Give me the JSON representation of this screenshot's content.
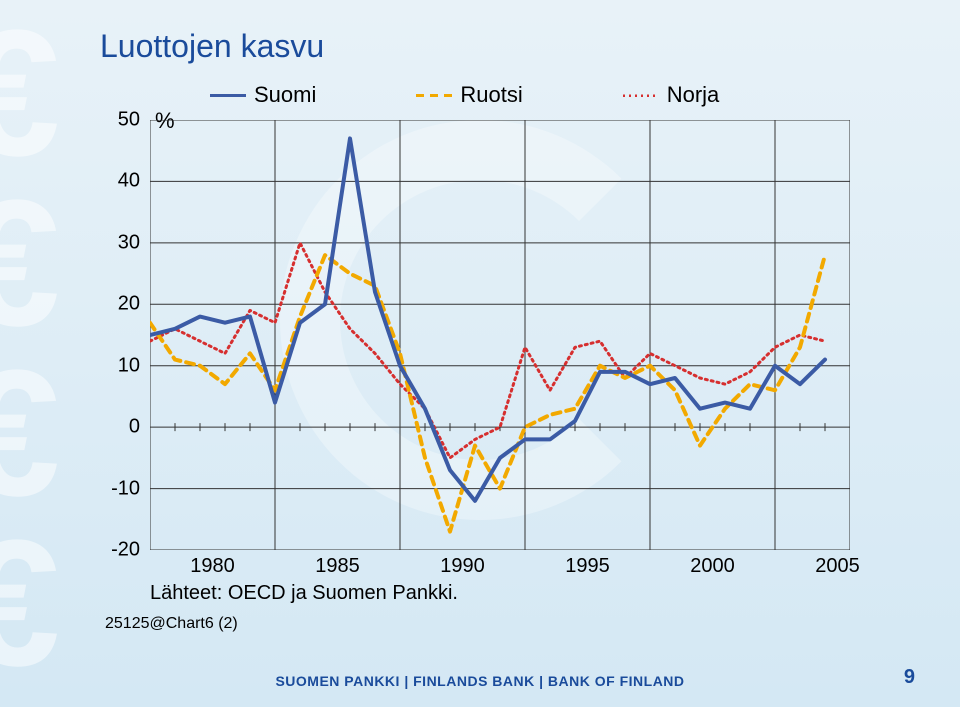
{
  "title": "Luottojen kasvu",
  "y_unit": "%",
  "legend": [
    {
      "label": "Suomi",
      "color": "#3b5ba5",
      "dash": "none",
      "width": 4
    },
    {
      "label": "Ruotsi",
      "color": "#f2a900",
      "dash": "8,6",
      "width": 4
    },
    {
      "label": "Norja",
      "color": "#d62f2f",
      "dash": "2,4",
      "width": 3
    }
  ],
  "chart": {
    "type": "line",
    "xlim": [
      1980,
      2008
    ],
    "ylim": [
      -20,
      50
    ],
    "ytick_step": 10,
    "xticks": [
      1980,
      1985,
      1990,
      1995,
      2000,
      2005
    ],
    "minor_xtick_step": 1,
    "grid_h_color": "#333333",
    "grid_v_color": "#333333",
    "grid_width": 1,
    "plot_bg": "rgba(255,255,255,0)",
    "border_color": "#333333",
    "series": {
      "Suomi": {
        "color": "#3b5ba5",
        "dash": "none",
        "width": 4,
        "points": [
          [
            1980,
            15
          ],
          [
            1981,
            16
          ],
          [
            1982,
            18
          ],
          [
            1983,
            17
          ],
          [
            1984,
            18
          ],
          [
            1985,
            4
          ],
          [
            1986,
            17
          ],
          [
            1987,
            20
          ],
          [
            1988,
            47
          ],
          [
            1989,
            22
          ],
          [
            1990,
            10
          ],
          [
            1991,
            3
          ],
          [
            1992,
            -7
          ],
          [
            1993,
            -12
          ],
          [
            1994,
            -5
          ],
          [
            1995,
            -2
          ],
          [
            1996,
            -2
          ],
          [
            1997,
            1
          ],
          [
            1998,
            9
          ],
          [
            1999,
            9
          ],
          [
            2000,
            7
          ],
          [
            2001,
            8
          ],
          [
            2002,
            3
          ],
          [
            2003,
            4
          ],
          [
            2004,
            3
          ],
          [
            2005,
            10
          ],
          [
            2006,
            7
          ],
          [
            2007,
            11
          ]
        ]
      },
      "Ruotsi": {
        "color": "#f2a900",
        "dash": "8,6",
        "width": 4,
        "points": [
          [
            1980,
            17
          ],
          [
            1981,
            11
          ],
          [
            1982,
            10
          ],
          [
            1983,
            7
          ],
          [
            1984,
            12
          ],
          [
            1985,
            6
          ],
          [
            1986,
            18
          ],
          [
            1987,
            28
          ],
          [
            1988,
            25
          ],
          [
            1989,
            23
          ],
          [
            1990,
            12
          ],
          [
            1991,
            -5
          ],
          [
            1992,
            -17
          ],
          [
            1993,
            -3
          ],
          [
            1994,
            -10
          ],
          [
            1995,
            0
          ],
          [
            1996,
            2
          ],
          [
            1997,
            3
          ],
          [
            1998,
            10
          ],
          [
            1999,
            8
          ],
          [
            2000,
            10
          ],
          [
            2001,
            6
          ],
          [
            2002,
            -3
          ],
          [
            2003,
            3
          ],
          [
            2004,
            7
          ],
          [
            2005,
            6
          ],
          [
            2006,
            13
          ],
          [
            2007,
            28
          ]
        ]
      },
      "Norja": {
        "color": "#d62f2f",
        "dash": "2,4",
        "width": 3,
        "points": [
          [
            1980,
            14
          ],
          [
            1981,
            16
          ],
          [
            1982,
            14
          ],
          [
            1983,
            12
          ],
          [
            1984,
            19
          ],
          [
            1985,
            17
          ],
          [
            1986,
            30
          ],
          [
            1987,
            22
          ],
          [
            1988,
            16
          ],
          [
            1989,
            12
          ],
          [
            1990,
            7
          ],
          [
            1991,
            3
          ],
          [
            1992,
            -5
          ],
          [
            1993,
            -2
          ],
          [
            1994,
            0
          ],
          [
            1995,
            13
          ],
          [
            1996,
            6
          ],
          [
            1997,
            13
          ],
          [
            1998,
            14
          ],
          [
            1999,
            8
          ],
          [
            2000,
            12
          ],
          [
            2001,
            10
          ],
          [
            2002,
            8
          ],
          [
            2003,
            7
          ],
          [
            2004,
            9
          ],
          [
            2005,
            13
          ],
          [
            2006,
            15
          ],
          [
            2007,
            14
          ]
        ]
      }
    }
  },
  "source_text": "Lähteet: OECD ja Suomen Pankki.",
  "chart_code": "25125@Chart6 (2)",
  "footer": "SUOMEN PANKKI | FINLANDS BANK | BANK OF FINLAND",
  "page_number": "9"
}
